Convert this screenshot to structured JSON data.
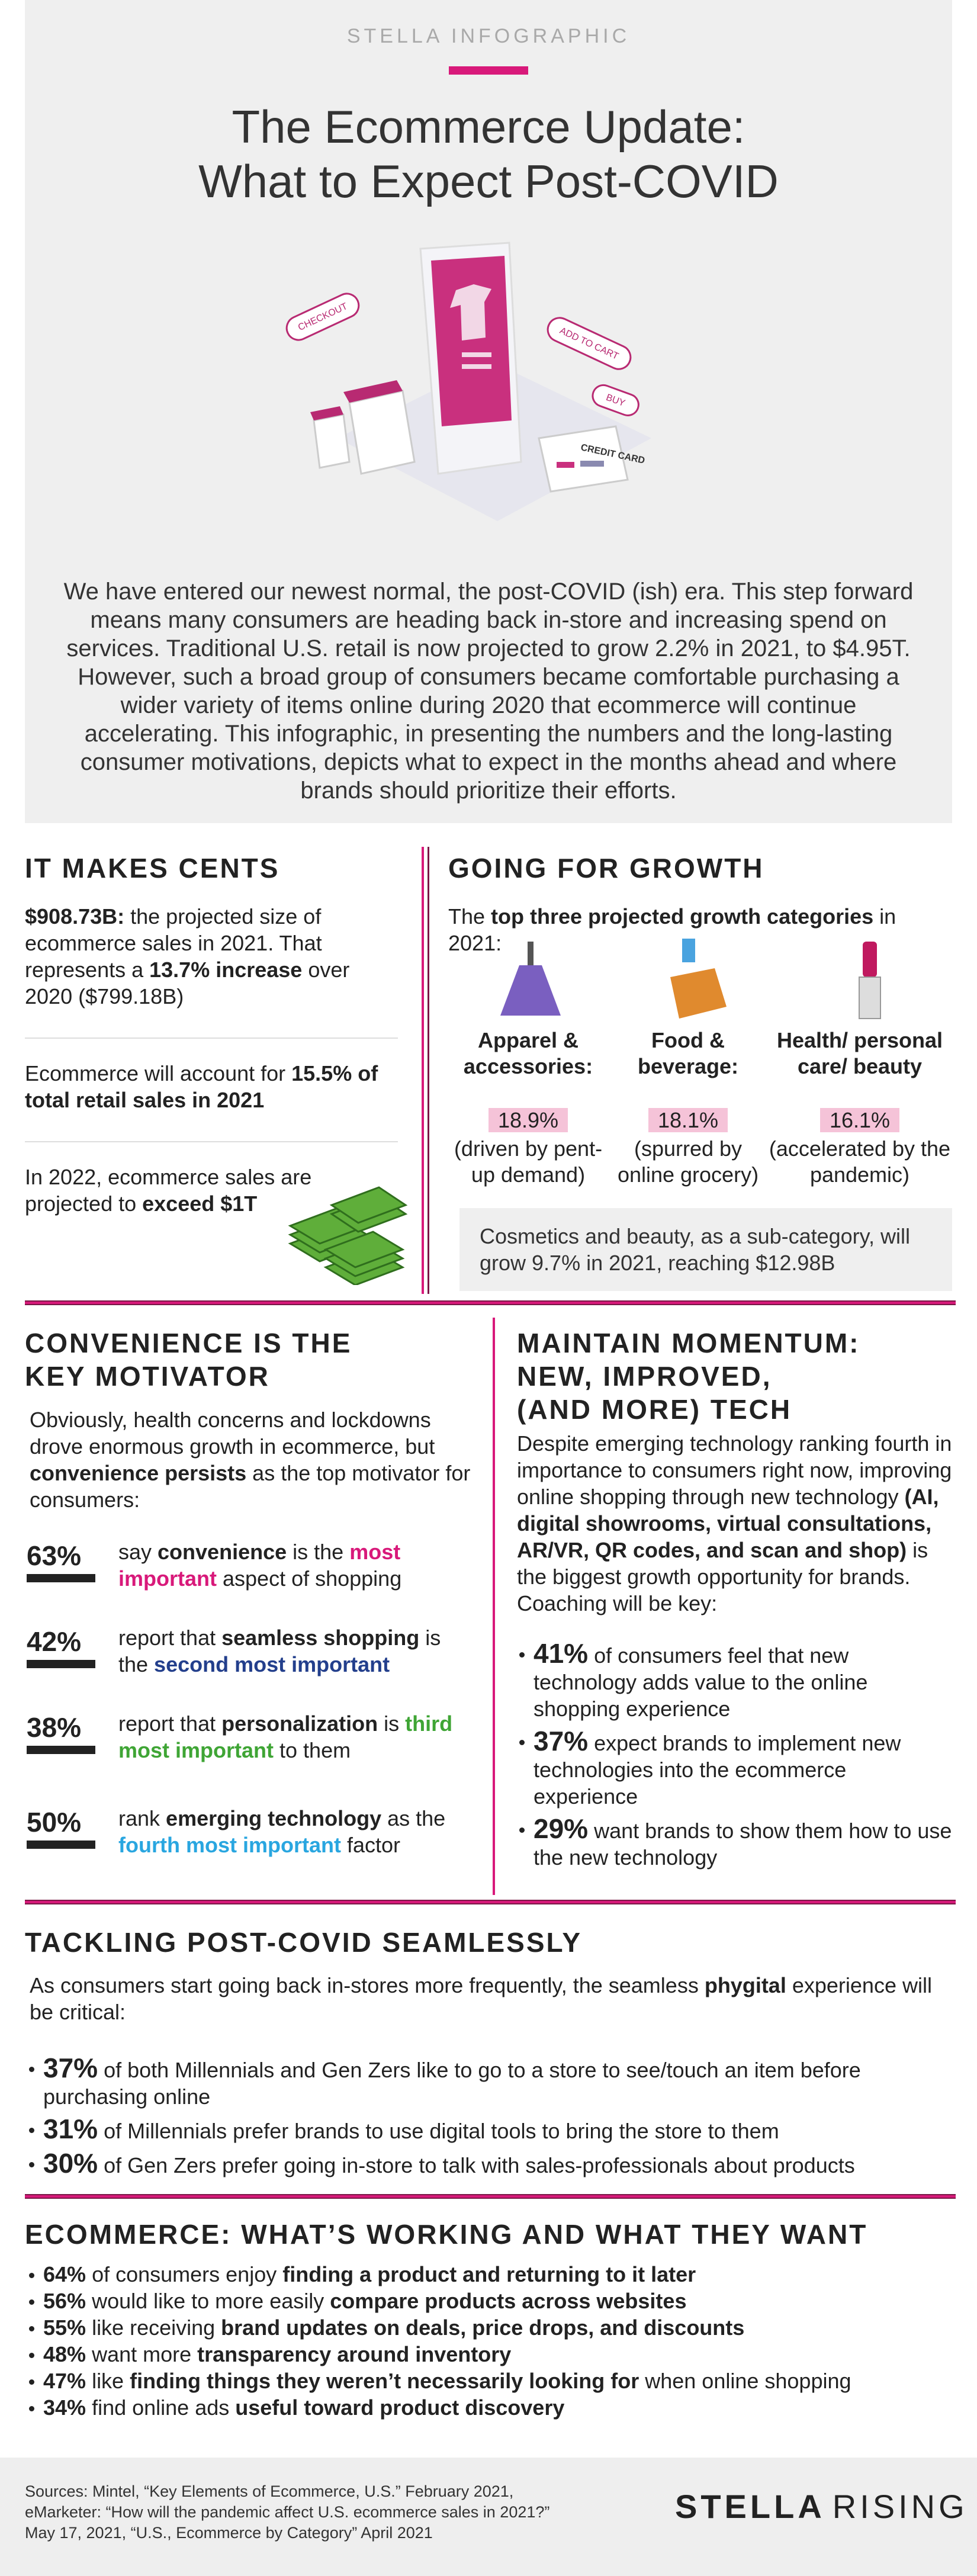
{
  "header": {
    "kicker": "STELLA INFOGRAPHIC",
    "title": [
      "The Ecommerce Update:",
      "What to Expect Post-COVID"
    ],
    "illustration_labels": [
      "CHECKOUT",
      "ADD TO CART",
      "BUY",
      "CREDIT CARD"
    ],
    "intro": "We have entered our newest normal, the post-COVID (ish) era. This step forward means many consumers are heading back in-store and increasing spend on services. Traditional U.S. retail is now projected to grow 2.2% in 2021, to $4.95T. However, such a broad group of consumers became comfortable purchasing a wider variety of items online during 2020 that ecommerce will continue accelerating. This infographic, in presenting the numbers and the long-lasting consumer motivations, depicts what to expect in the months ahead and where brands should prioritize their efforts."
  },
  "makes_cents": {
    "heading": "IT MAKES CENTS",
    "items": [
      [
        "$908.73B:",
        " the projected size of ecommerce sales in 2021. That represents a ",
        "13.7% increase",
        " over 2020 ($799.18B)"
      ],
      [
        "Ecommerce will account for ",
        "15.5% of total retail sales in 2021"
      ],
      [
        "In 2022, ecommerce sales are projected to ",
        "exceed $1T"
      ]
    ]
  },
  "growth": {
    "heading": "GOING FOR GROWTH",
    "intro": [
      "The ",
      "top three projected growth categories",
      " in 2021:"
    ],
    "categories": [
      {
        "label": "Apparel & accessories:",
        "value": "18.9%",
        "note": "(driven by pent-up demand)"
      },
      {
        "label": "Food & beverage:",
        "value": "18.1%",
        "note": "(spurred by online grocery)"
      },
      {
        "label": "Health/ personal care/ beauty",
        "value": "16.1%",
        "note": "(accelerated by the pandemic)"
      }
    ],
    "note": "Cosmetics and beauty, as a sub-category, will grow 9.7% in 2021, reaching $12.98B"
  },
  "convenience": {
    "heading": [
      "CONVENIENCE IS THE",
      "KEY MOTIVATOR"
    ],
    "intro": [
      "Obviously, health concerns and lockdowns drove enormous growth in ecommerce, but ",
      "convenience persists",
      " as the top motivator for consumers:"
    ],
    "stats": [
      {
        "percent": "63%",
        "text": [
          "say ",
          "convenience",
          " is the ",
          "most important",
          " aspect of shopping"
        ]
      },
      {
        "percent": "42%",
        "text": [
          "report that ",
          "seamless shopping",
          " is the ",
          "second most important"
        ]
      },
      {
        "percent": "38%",
        "text": [
          "report that ",
          "personalization",
          " is ",
          "third most important",
          " to them"
        ]
      },
      {
        "percent": "50%",
        "text": [
          "rank ",
          "emerging technology",
          " as the ",
          "fourth most important",
          " factor"
        ]
      }
    ]
  },
  "tech": {
    "heading": [
      "MAINTAIN MOMENTUM:",
      "NEW, IMPROVED,",
      "(AND MORE) TECH"
    ],
    "intro": [
      "Despite emerging technology ranking fourth in importance to consumers right now, improving online shopping through new technology ",
      "(AI, digital showrooms, virtual consultations, AR/VR, QR codes, and scan and shop)",
      " is the biggest growth opportunity for brands. Coaching will be key:"
    ],
    "bullets": [
      {
        "stat": "41%",
        "text": " of consumers feel that new technology adds value to the online shopping experience"
      },
      {
        "stat": "37%",
        "text": " expect brands to implement new technologies into the ecommerce experience"
      },
      {
        "stat": "29%",
        "text": " want brands to show them how to use the new technology"
      }
    ]
  },
  "tackling": {
    "heading": "TACKLING POST-COVID SEAMLESSLY",
    "intro": [
      "As consumers start going back in-stores more frequently, the seamless ",
      "phygital",
      " experience will be critical:"
    ],
    "bullets": [
      {
        "stat": "37%",
        "text": " of both Millennials and Gen Zers like to go to a store to see/touch an item before purchasing online"
      },
      {
        "stat": "31%",
        "text": " of Millennials prefer brands to use digital tools to bring the store to them"
      },
      {
        "stat": "30%",
        "text": " of Gen Zers prefer going in-store to talk with sales-professionals about products"
      }
    ]
  },
  "working": {
    "heading": "ECOMMERCE: WHAT’S WORKING AND WHAT THEY WANT",
    "bullets": [
      {
        "stat": "64%",
        "text": [
          " of consumers enjoy ",
          "finding a product and returning to it later"
        ]
      },
      {
        "stat": "56%",
        "text": [
          " would like to more easily ",
          "compare products across websites"
        ]
      },
      {
        "stat": "55%",
        "text": [
          " like receiving ",
          "brand updates on deals, price drops, and discounts"
        ]
      },
      {
        "stat": "48%",
        "text": [
          " want more ",
          "transparency around inventory"
        ]
      },
      {
        "stat": "47%",
        "text": [
          " like ",
          "finding things they weren’t necessarily looking for",
          " when online shopping"
        ]
      },
      {
        "stat": "34%",
        "text": [
          " find online ads ",
          "useful toward product discovery"
        ]
      }
    ]
  },
  "footer": {
    "sources": "Sources: Mintel, “Key Elements of Ecommerce, U.S.” February 2021, eMarketer: “How will the pandemic affect U.S. ecommerce sales in 2021?” May 17, 2021, “U.S., Ecommerce by Category” April 2021",
    "logo": [
      "STELLA",
      "RISING"
    ]
  }
}
